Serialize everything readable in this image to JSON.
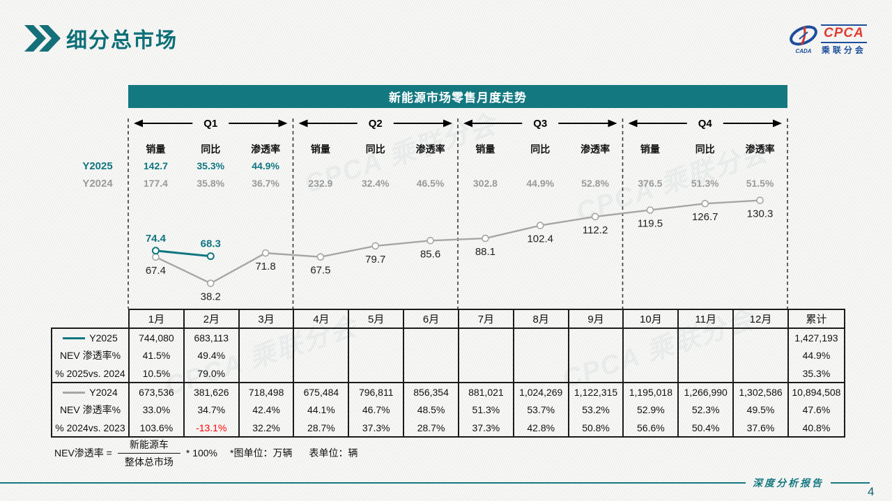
{
  "header": {
    "title": "细分总市场",
    "logo": {
      "main": "CPCA",
      "sub": "乘联分会",
      "mark_text": "CADA"
    }
  },
  "watermark": "CPCA 乘联分会",
  "chart": {
    "title": "新能源市场零售月度走势",
    "row_labels": {
      "y2025": "Y2025",
      "y2024": "Y2024"
    },
    "stat_headers": [
      "销量",
      "同比",
      "渗透率"
    ],
    "quarters": [
      {
        "label": "Q1",
        "y2025": [
          "142.7",
          "35.3%",
          "44.9%"
        ],
        "y2024": [
          "177.4",
          "35.8%",
          "36.7%"
        ]
      },
      {
        "label": "Q2",
        "y2025": [
          "",
          "",
          ""
        ],
        "y2024": [
          "232.9",
          "32.4%",
          "46.5%"
        ]
      },
      {
        "label": "Q3",
        "y2025": [
          "",
          "",
          ""
        ],
        "y2024": [
          "302.8",
          "44.9%",
          "52.8%"
        ]
      },
      {
        "label": "Q4",
        "y2025": [
          "",
          "",
          ""
        ],
        "y2024": [
          "376.5",
          "51.3%",
          "51.5%"
        ]
      }
    ]
  },
  "chart_data": {
    "type": "line",
    "title": "新能源市场零售月度走势",
    "categories": [
      "1月",
      "2月",
      "3月",
      "4月",
      "5月",
      "6月",
      "7月",
      "8月",
      "9月",
      "10月",
      "11月",
      "12月"
    ],
    "series": [
      {
        "name": "Y2025",
        "color": "#0f7680",
        "values": [
          74.4,
          68.3
        ]
      },
      {
        "name": "Y2024",
        "color": "#a6a6a6",
        "values": [
          67.4,
          38.2,
          71.8,
          67.5,
          79.7,
          85.6,
          88.1,
          102.4,
          112.2,
          119.5,
          126.7,
          130.3
        ]
      }
    ],
    "unit": "万辆",
    "legend_position": "left-rows",
    "grid": false
  },
  "table": {
    "month_headers": [
      "1月",
      "2月",
      "3月",
      "4月",
      "5月",
      "6月",
      "7月",
      "8月",
      "9月",
      "10月",
      "11月",
      "12月"
    ],
    "total_header": "累计",
    "rows": [
      {
        "label": "Y2025",
        "marker": "#0f7680",
        "group_start": true,
        "values": [
          "744,080",
          "683,113",
          "",
          "",
          "",
          "",
          "",
          "",
          "",
          "",
          "",
          ""
        ],
        "total": "1,427,193"
      },
      {
        "label": "NEV 渗透率%",
        "values": [
          "41.5%",
          "49.4%",
          "",
          "",
          "",
          "",
          "",
          "",
          "",
          "",
          "",
          ""
        ],
        "total": "44.9%"
      },
      {
        "label": "% 2025vs. 2024",
        "values": [
          "10.5%",
          "79.0%",
          "",
          "",
          "",
          "",
          "",
          "",
          "",
          "",
          "",
          ""
        ],
        "total": "35.3%"
      },
      {
        "label": "Y2024",
        "marker": "#a6a6a6",
        "group_start": true,
        "values": [
          "673,536",
          "381,626",
          "718,498",
          "675,484",
          "796,811",
          "856,354",
          "881,021",
          "1,024,269",
          "1,122,315",
          "1,195,018",
          "1,266,990",
          "1,302,586"
        ],
        "total": "10,894,508"
      },
      {
        "label": "NEV 渗透率%",
        "values": [
          "33.0%",
          "34.7%",
          "42.4%",
          "44.1%",
          "46.7%",
          "48.5%",
          "51.3%",
          "53.7%",
          "53.2%",
          "52.9%",
          "52.3%",
          "49.5%"
        ],
        "total": "47.6%"
      },
      {
        "label": "% 2024vs. 2023",
        "red_cols": [
          1
        ],
        "values": [
          "103.6%",
          "-13.1%",
          "32.2%",
          "28.7%",
          "37.3%",
          "28.7%",
          "37.3%",
          "42.8%",
          "50.8%",
          "56.6%",
          "50.4%",
          "37.6%"
        ],
        "total": "40.8%"
      }
    ]
  },
  "footnote": {
    "formula_label": "NEV渗透率 =",
    "numerator": "新能源车",
    "denominator": "整体总市场",
    "multiplier": "* 100%",
    "chart_unit": "*图单位：万辆",
    "table_unit": "表单位：辆"
  },
  "footer": {
    "report_label": "深度分析报告",
    "page_number": "4"
  }
}
